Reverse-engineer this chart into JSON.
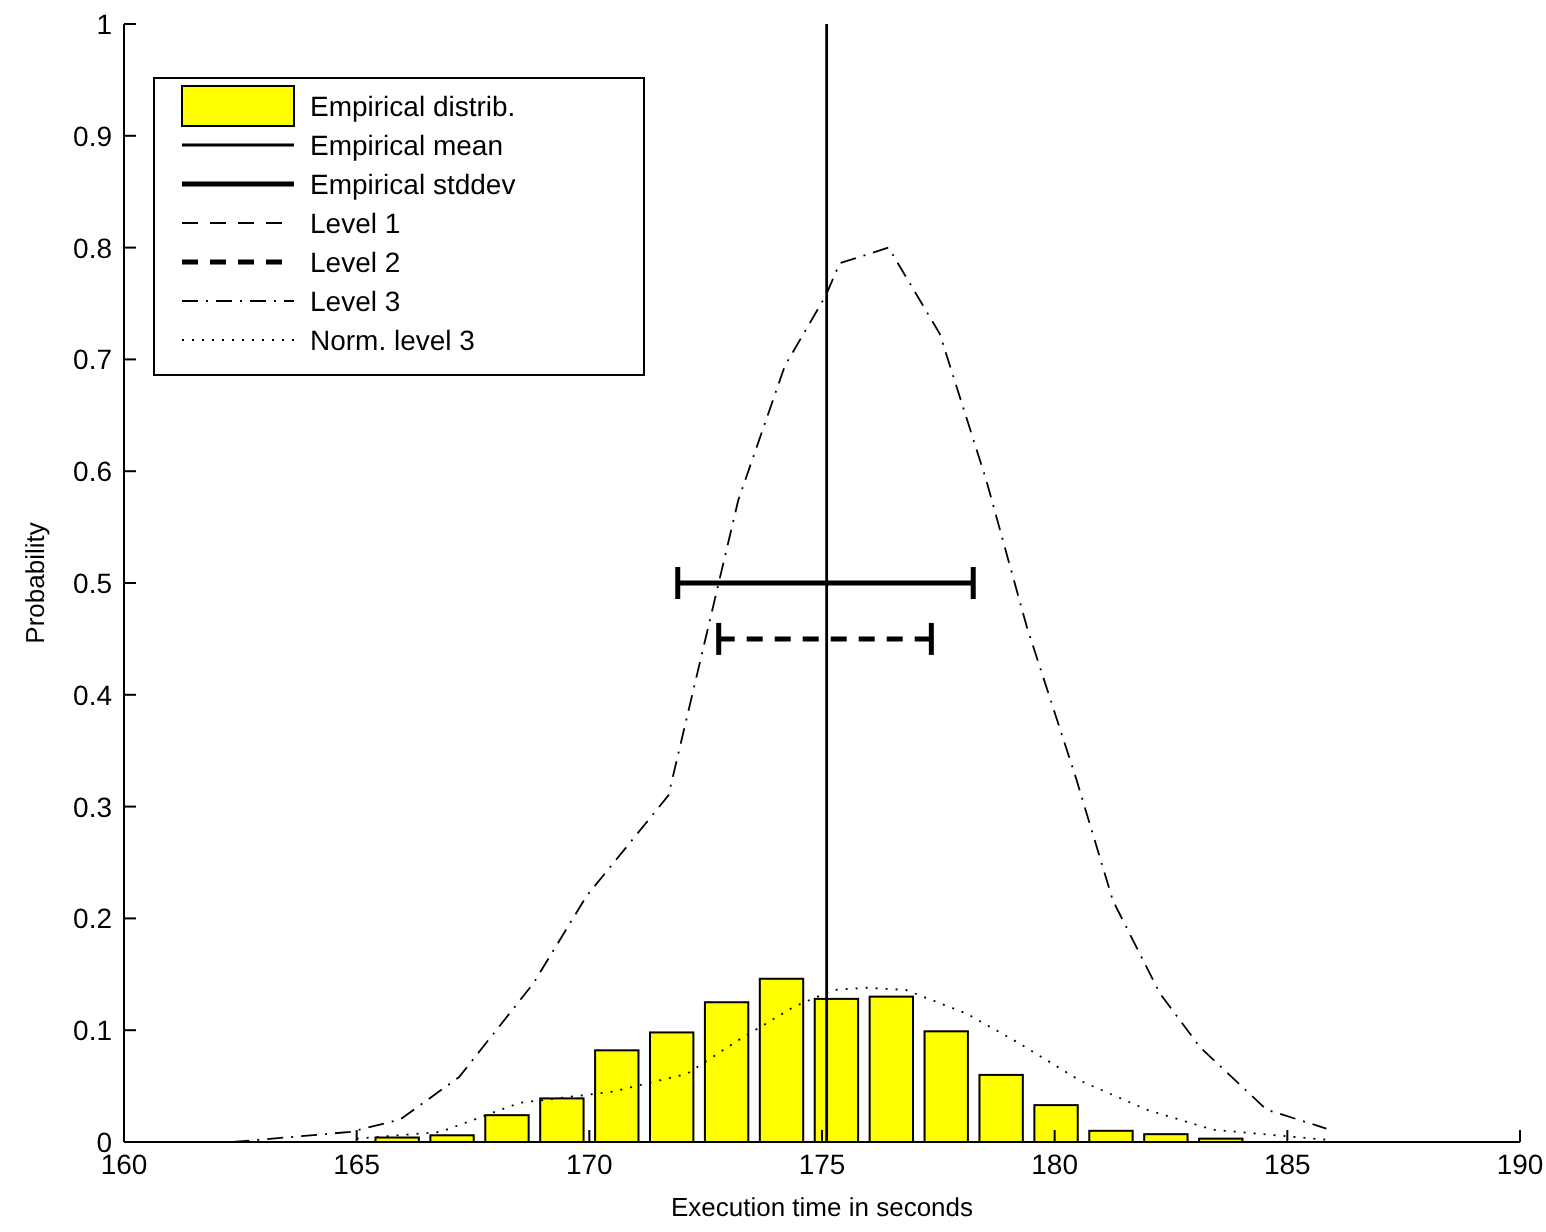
{
  "chart_data": {
    "type": "bar",
    "xlabel": "Execution time in seconds",
    "ylabel": "Probability",
    "xlim": [
      160,
      190
    ],
    "xticks": [
      160,
      165,
      170,
      175,
      180,
      185,
      190
    ],
    "ylim": [
      0,
      1
    ],
    "yticks": [
      0,
      0.1,
      0.2,
      0.3,
      0.4,
      0.5,
      0.6,
      0.7,
      0.8,
      0.9,
      1
    ],
    "grid": false,
    "legend": "top left",
    "series": [
      {
        "name": "Empirical distrib.",
        "color": "#ffff00",
        "x": [
          165.87,
          167.05,
          168.23,
          169.41,
          170.59,
          171.77,
          172.95,
          174.13,
          175.31,
          176.49,
          177.67,
          178.85,
          180.03,
          181.21,
          182.39,
          183.57
        ],
        "values": [
          0.004,
          0.006,
          0.024,
          0.039,
          0.082,
          0.098,
          0.125,
          0.146,
          0.128,
          0.13,
          0.099,
          0.06,
          0.033,
          0.01,
          0.007,
          0.003
        ]
      },
      {
        "type": "line",
        "name": "Empirical mean",
        "color": "#000000",
        "line_style": "solid",
        "x": [
          175.1,
          175.1
        ],
        "values": [
          0,
          1
        ]
      },
      {
        "type": "line",
        "name": "Empirical stddev",
        "color": "#000000",
        "line_style": "solid",
        "x": [
          171.9,
          178.25
        ],
        "values": [
          0.5,
          0.5
        ]
      },
      {
        "type": "line",
        "name": "Level 1",
        "color": "#000000",
        "line_style": "dashed"
      },
      {
        "type": "line",
        "name": "Level 2",
        "color": "#000000",
        "line_style": "dashed",
        "x": [
          172.78,
          177.35
        ],
        "values": [
          0.45,
          0.45
        ]
      },
      {
        "type": "line",
        "name": "Level 3",
        "color": "#000000",
        "line_style": "dashdot",
        "x": [
          162.35,
          164.86,
          165.93,
          167.2,
          168.8,
          169.94,
          171.7,
          173.2,
          174.2,
          175.08,
          175.38,
          176.43,
          177.53,
          178.53,
          179.4,
          180.47,
          181.25,
          182.26,
          183.12,
          184.55,
          185.84
        ],
        "values": [
          0,
          0.009,
          0.02,
          0.058,
          0.142,
          0.22,
          0.31,
          0.574,
          0.694,
          0.757,
          0.786,
          0.8,
          0.723,
          0.592,
          0.461,
          0.324,
          0.216,
          0.133,
          0.085,
          0.029,
          0.012
        ]
      },
      {
        "type": "line",
        "name": "Norm. level 3",
        "color": "#000000",
        "line_style": "dotted",
        "x": [
          165,
          166.8,
          168.5,
          170.5,
          172.1,
          173.2,
          174.4,
          175.24,
          175.95,
          176.8,
          178.1,
          179.25,
          180.54,
          181.97,
          183.4,
          185.84
        ],
        "values": [
          0.003,
          0.009,
          0.035,
          0.045,
          0.061,
          0.091,
          0.121,
          0.136,
          0.138,
          0.136,
          0.115,
          0.088,
          0.055,
          0.029,
          0.011,
          0.002
        ]
      }
    ]
  }
}
